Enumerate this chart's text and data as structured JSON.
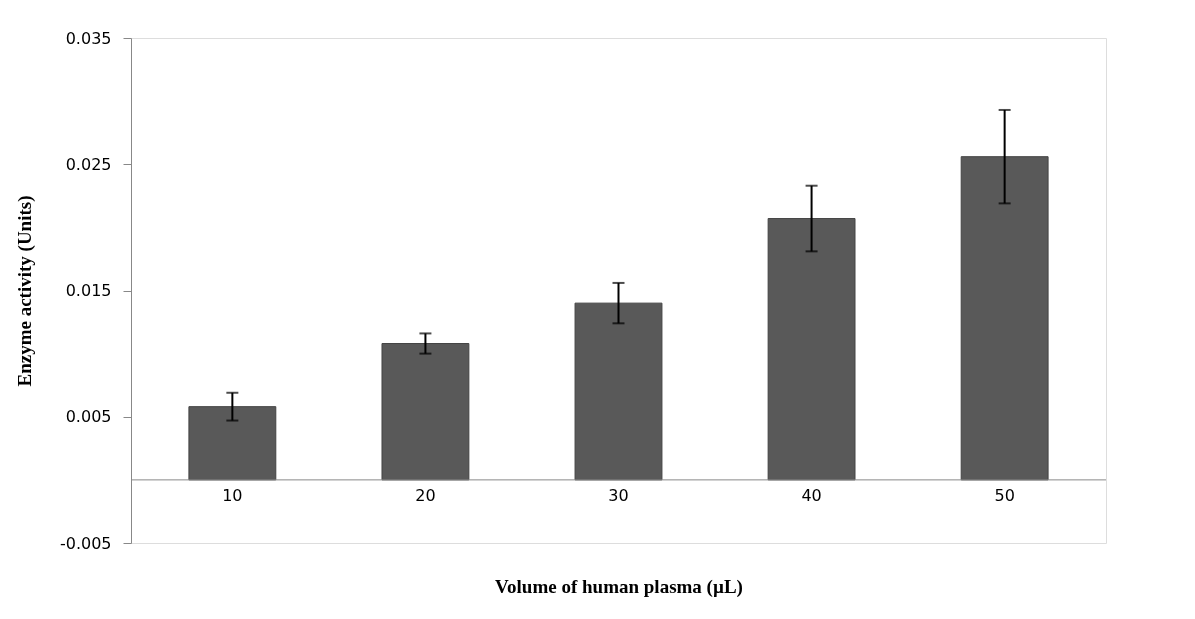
{
  "chart_data": {
    "type": "bar",
    "xlabel": "Volume of human plasma (µL)",
    "ylabel": "Enzyme activity (Units)",
    "categories": [
      "10",
      "20",
      "30",
      "40",
      "50"
    ],
    "values": [
      0.0058,
      0.0108,
      0.014,
      0.0207,
      0.0256
    ],
    "errors": [
      0.0011,
      0.0008,
      0.0016,
      0.0026,
      0.0037
    ],
    "color": "#595959",
    "ylim": [
      -0.005,
      0.035
    ],
    "yticks": [
      -0.005,
      0.005,
      0.015,
      0.025,
      0.035
    ],
    "grid": false
  }
}
